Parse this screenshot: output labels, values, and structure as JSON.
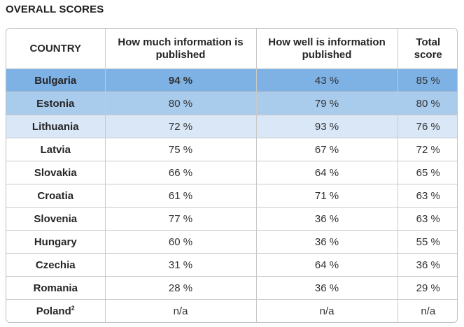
{
  "title": "OVERALL SCORES",
  "headers": {
    "country": "COUNTRY",
    "how_much": "How much information is published",
    "how_well": "How well is information published",
    "total": "Total score"
  },
  "rows": [
    {
      "country": "Bulgaria",
      "how_much": "94 %",
      "how_well": "43 %",
      "total": "85 %"
    },
    {
      "country": "Estonia",
      "how_much": "80 %",
      "how_well": "79 %",
      "total": "80 %"
    },
    {
      "country": "Lithuania",
      "how_much": "72 %",
      "how_well": "93 %",
      "total": "76 %"
    },
    {
      "country": "Latvia",
      "how_much": "75 %",
      "how_well": "67 %",
      "total": "72 %"
    },
    {
      "country": "Slovakia",
      "how_much": "66 %",
      "how_well": "64 %",
      "total": "65 %"
    },
    {
      "country": "Croatia",
      "how_much": "61 %",
      "how_well": "71 %",
      "total": "63 %"
    },
    {
      "country": "Slovenia",
      "how_much": "77 %",
      "how_well": "36 %",
      "total": "63 %"
    },
    {
      "country": "Hungary",
      "how_much": "60 %",
      "how_well": "36 %",
      "total": "55 %"
    },
    {
      "country": "Czechia",
      "how_much": "31 %",
      "how_well": "64 %",
      "total": "36 %"
    },
    {
      "country": "Romania",
      "how_much": "28 %",
      "how_well": "36 %",
      "total": "29 %"
    },
    {
      "country": "Poland",
      "footnote": "2",
      "how_much": "n/a",
      "how_well": "n/a",
      "total": "n/a"
    }
  ],
  "colors": {
    "rank1": "#7eb1e4",
    "rank2": "#a9cbec",
    "rank3": "#d9e7f7"
  }
}
